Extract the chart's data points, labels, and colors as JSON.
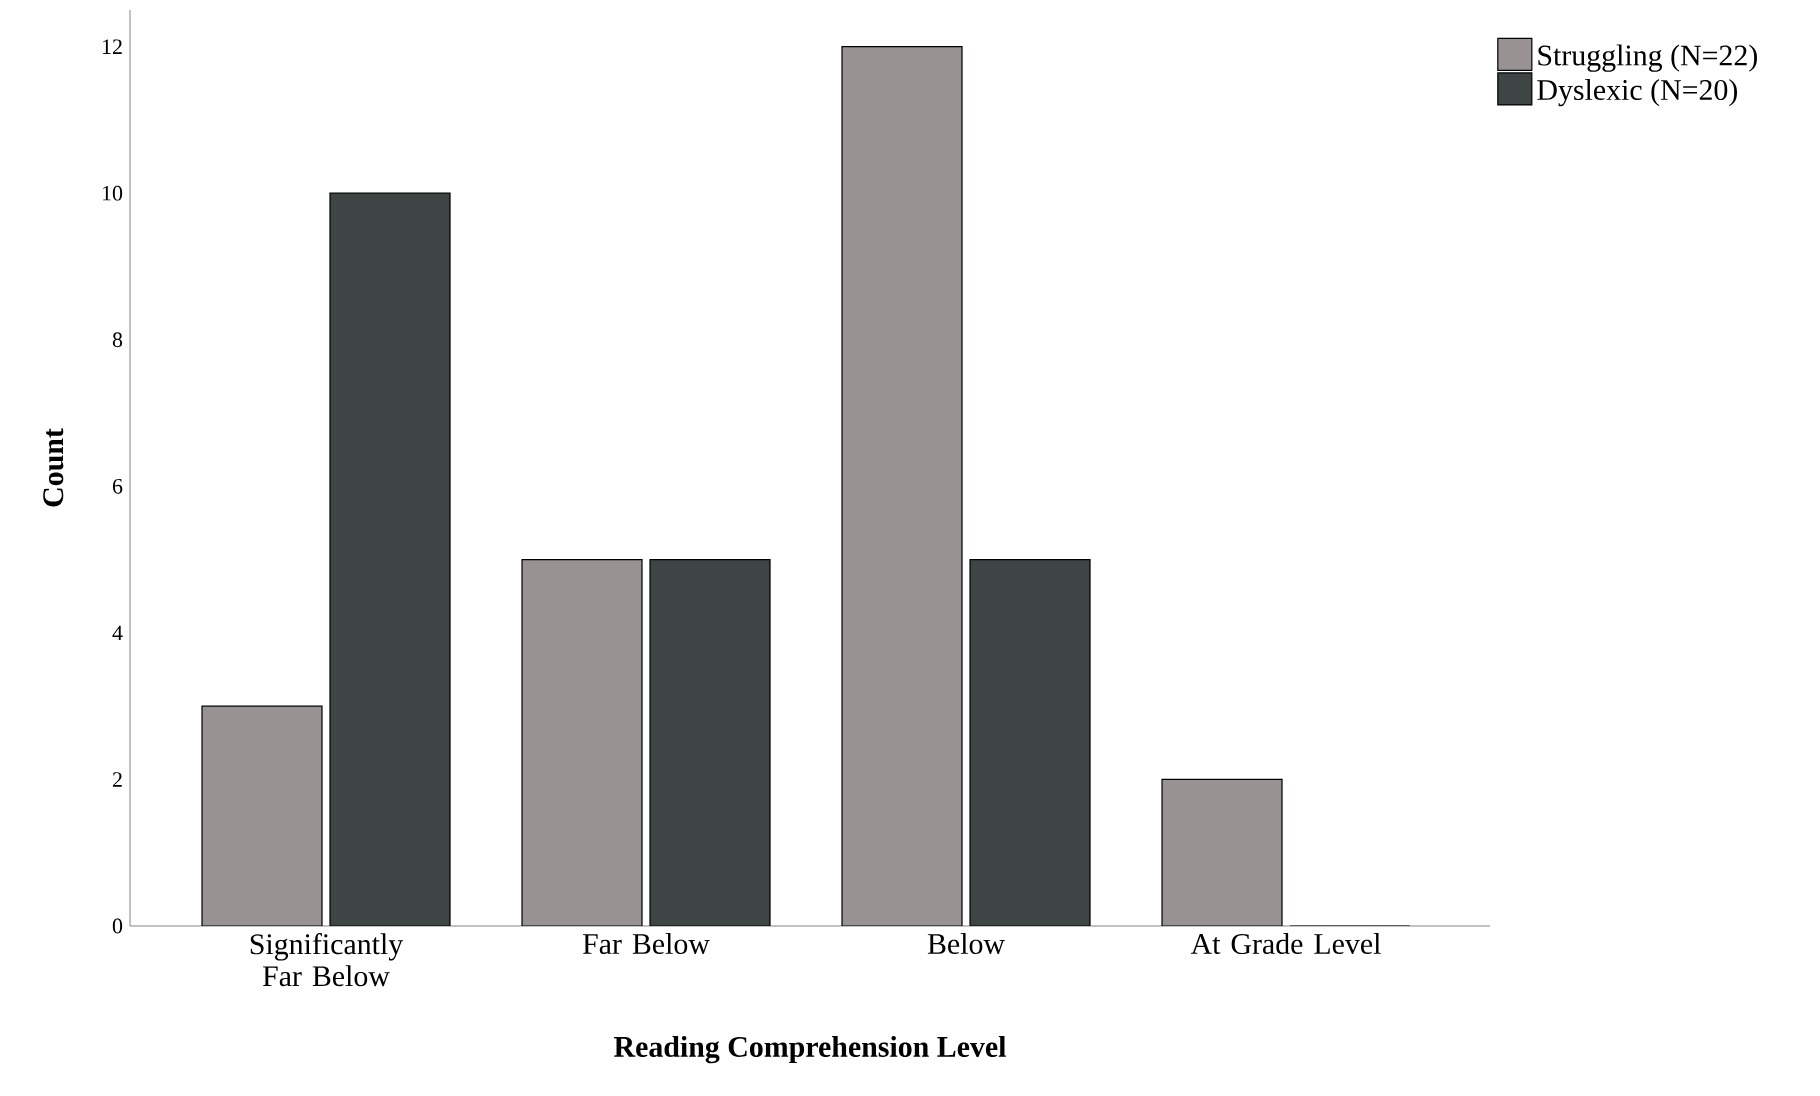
{
  "chart_data": {
    "type": "bar",
    "xlabel": "Reading Comprehension Level",
    "ylabel": "Count",
    "categories": [
      "Significantly Far Below",
      "Far Below",
      "Below",
      "At Grade Level"
    ],
    "series": [
      {
        "name": "Struggling (N=22)",
        "color": "#989392",
        "values": [
          3,
          5,
          12,
          2
        ]
      },
      {
        "name": "Dyslexic (N=20)",
        "color": "#3f4444",
        "values": [
          10,
          5,
          5,
          0
        ]
      }
    ],
    "ylim": [
      0,
      12.5
    ],
    "yticks": [
      0,
      2,
      4,
      6,
      8,
      10,
      12
    ],
    "legend": "top right",
    "grid": false
  }
}
